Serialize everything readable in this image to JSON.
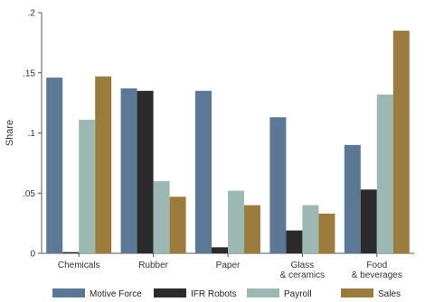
{
  "chart_data": {
    "type": "bar",
    "title": "",
    "xlabel": "",
    "ylabel": "Share",
    "ylim": [
      0,
      0.2
    ],
    "yticks": [
      0,
      0.05,
      0.1,
      0.15,
      0.2
    ],
    "ytick_labels": [
      "0",
      ".05",
      ".1",
      ".15",
      ".2"
    ],
    "grid": false,
    "legend_position": "bottom",
    "categories": [
      [
        "Chemicals"
      ],
      [
        "Rubber"
      ],
      [
        "Paper"
      ],
      [
        "Glass",
        "& ceramics"
      ],
      [
        "Food",
        "& beverages"
      ]
    ],
    "series": [
      {
        "name": "Motive Force",
        "color": "#5b7896",
        "values": [
          0.146,
          0.137,
          0.135,
          0.113,
          0.09
        ]
      },
      {
        "name": "IFR Robots",
        "color": "#2b2b2b",
        "values": [
          0.001,
          0.135,
          0.005,
          0.019,
          0.053
        ]
      },
      {
        "name": "Payroll",
        "color": "#9bb8b4",
        "values": [
          0.111,
          0.06,
          0.052,
          0.04,
          0.132
        ]
      },
      {
        "name": "Sales",
        "color": "#9c7c3c",
        "values": [
          0.147,
          0.047,
          0.04,
          0.033,
          0.185
        ]
      }
    ]
  }
}
